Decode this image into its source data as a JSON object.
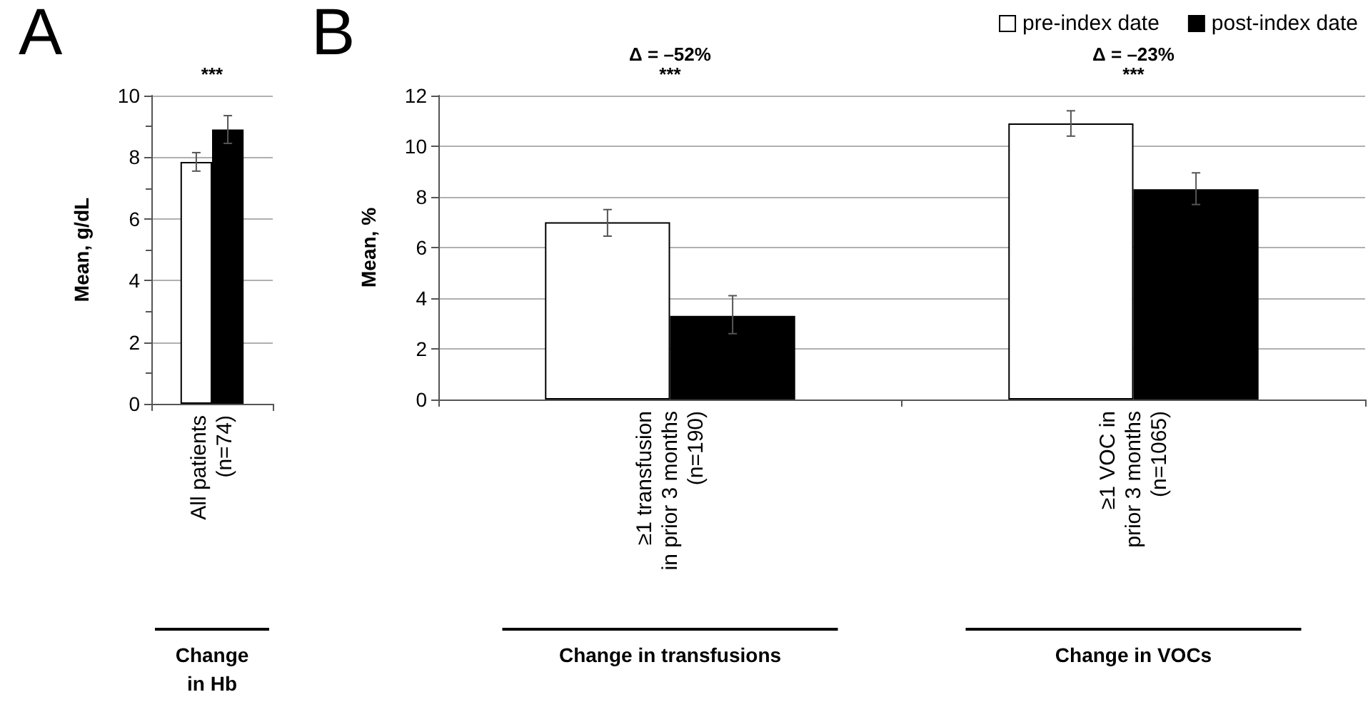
{
  "chart_data": [
    {
      "type": "bar",
      "title": "A",
      "ylabel": "Mean, g/dL",
      "categories": [
        "All patients\n(n=74)"
      ],
      "series": [
        {
          "color": "#ffffff",
          "values": [
            7.85
          ],
          "errors": [
            [
              7.55,
              8.15
            ]
          ]
        },
        {
          "color": "#000000",
          "values": [
            8.9
          ],
          "errors": [
            [
              8.45,
              9.35
            ]
          ]
        }
      ],
      "ylim": [
        0,
        10
      ],
      "yticks": [
        0,
        2,
        4,
        6,
        8,
        10
      ],
      "grid": "y",
      "legend": false,
      "annotations": [
        "***",
        "Change\nin Hb"
      ]
    },
    {
      "type": "bar",
      "title": "B",
      "ylabel": "Mean, %",
      "categories": [
        "≥1 transfusion\nin prior 3 months\n(n=190)",
        "≥1 VOC in\nprior 3 months\n(n=1065)"
      ],
      "series": [
        {
          "name": "pre-index date",
          "color": "#ffffff",
          "values": [
            7.0,
            10.9
          ],
          "errors": [
            [
              6.45,
              7.5
            ],
            [
              10.4,
              11.4
            ]
          ]
        },
        {
          "name": "post-index date",
          "color": "#000000",
          "values": [
            3.3,
            8.3
          ],
          "errors": [
            [
              2.6,
              4.1
            ],
            [
              7.7,
              8.95
            ]
          ]
        }
      ],
      "ylim": [
        0,
        12
      ],
      "yticks": [
        0,
        2,
        4,
        6,
        8,
        10,
        12
      ],
      "grid": "y",
      "legend": "top right",
      "annotations": [
        "Δ = –52%",
        "***",
        "Δ = –23%",
        "***",
        "Change in transfusions",
        "Change in VOCs"
      ]
    }
  ]
}
